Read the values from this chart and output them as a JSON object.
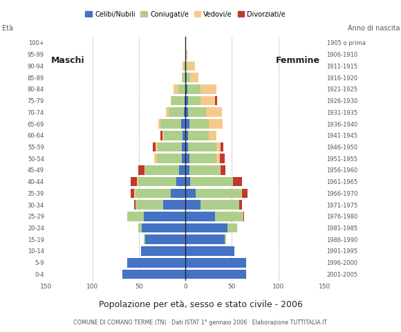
{
  "age_groups": [
    "0-4",
    "5-9",
    "10-14",
    "15-19",
    "20-24",
    "25-29",
    "30-34",
    "35-39",
    "40-44",
    "45-49",
    "50-54",
    "55-59",
    "60-64",
    "65-69",
    "70-74",
    "75-79",
    "80-84",
    "85-89",
    "90-94",
    "95-99",
    "100+"
  ],
  "birth_years": [
    "2001-2005",
    "1996-2000",
    "1991-1995",
    "1986-1990",
    "1981-1985",
    "1976-1980",
    "1971-1975",
    "1966-1970",
    "1961-1965",
    "1956-1960",
    "1951-1955",
    "1946-1950",
    "1941-1945",
    "1936-1940",
    "1931-1935",
    "1926-1930",
    "1921-1925",
    "1916-1920",
    "1911-1915",
    "1906-1910",
    "1905 o prima"
  ],
  "male": {
    "celibinubili": [
      68,
      63,
      48,
      43,
      47,
      45,
      24,
      16,
      10,
      7,
      4,
      4,
      3,
      5,
      2,
      1,
      0,
      0,
      0,
      0,
      0
    ],
    "coniugati": [
      0,
      0,
      0,
      2,
      4,
      18,
      30,
      38,
      41,
      36,
      27,
      26,
      20,
      22,
      16,
      14,
      8,
      3,
      2,
      0,
      0
    ],
    "vedovi": [
      0,
      0,
      0,
      0,
      0,
      0,
      0,
      1,
      1,
      1,
      3,
      2,
      2,
      2,
      3,
      1,
      5,
      1,
      1,
      0,
      0
    ],
    "divorziati": [
      0,
      0,
      0,
      0,
      0,
      0,
      1,
      4,
      7,
      7,
      0,
      3,
      2,
      0,
      0,
      0,
      0,
      0,
      0,
      0,
      0
    ]
  },
  "female": {
    "celibinubili": [
      65,
      65,
      53,
      42,
      45,
      32,
      16,
      11,
      5,
      4,
      4,
      3,
      3,
      4,
      3,
      3,
      2,
      1,
      0,
      0,
      0
    ],
    "coniugate": [
      0,
      0,
      0,
      2,
      11,
      30,
      42,
      49,
      46,
      33,
      29,
      30,
      22,
      21,
      19,
      13,
      14,
      4,
      2,
      0,
      0
    ],
    "vedove": [
      0,
      0,
      0,
      0,
      0,
      0,
      0,
      1,
      0,
      1,
      4,
      5,
      8,
      15,
      17,
      16,
      17,
      9,
      8,
      2,
      0
    ],
    "divorziate": [
      0,
      0,
      0,
      0,
      0,
      1,
      3,
      6,
      10,
      5,
      5,
      3,
      0,
      0,
      0,
      2,
      0,
      0,
      0,
      0,
      0
    ]
  },
  "colors": {
    "celibinubili": "#4472C4",
    "coniugati": "#AECF8B",
    "vedovi": "#F5C98C",
    "divorziati": "#C0392B"
  },
  "xlim": 150,
  "title": "Popolazione per età, sesso e stato civile - 2006",
  "subtitle": "COMUNE DI COMANO TERME (TN) · Dati ISTAT 1° gennaio 2006 · Elaborazione TUTTITALIA.IT",
  "ylabel_left": "Età",
  "ylabel_right": "Anno di nascita",
  "label_maschi": "Maschi",
  "label_femmine": "Femmine",
  "legend_labels": [
    "Celibi/Nubili",
    "Coniugati/e",
    "Vedovi/e",
    "Divorziati/e"
  ],
  "bg_color": "#FFFFFF",
  "bar_height": 0.82
}
